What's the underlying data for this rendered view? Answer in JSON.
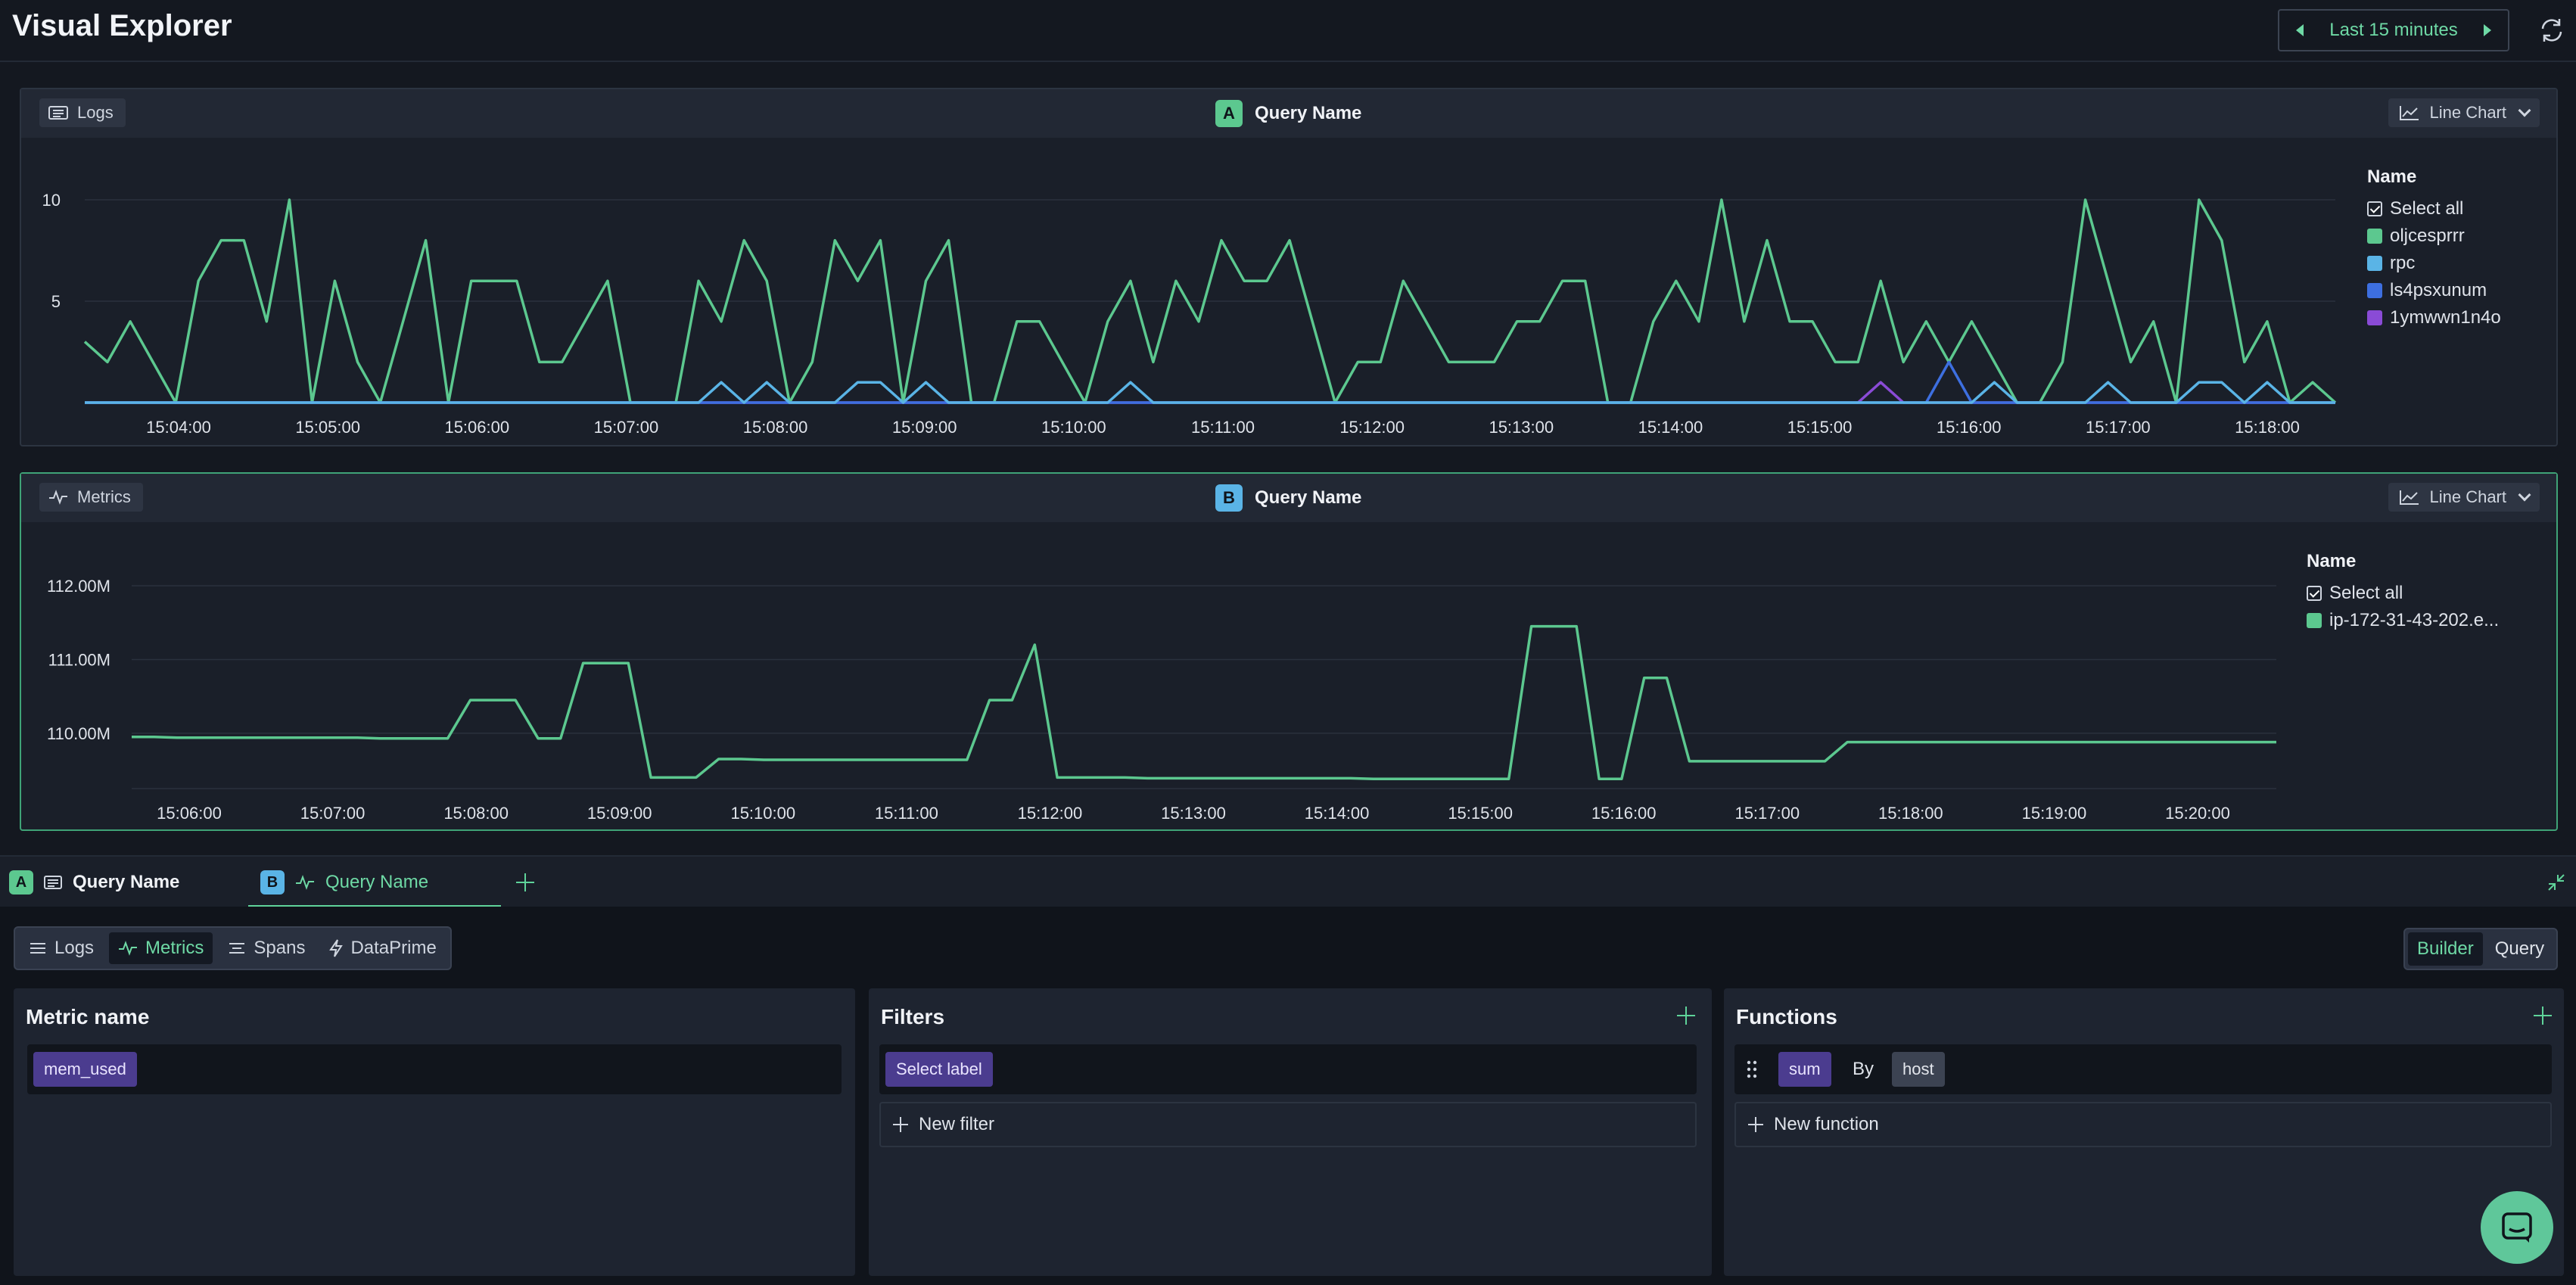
{
  "header": {
    "title": "Visual Explorer",
    "time_range": "Last 15 minutes"
  },
  "panel_a": {
    "source": "Logs",
    "badge": "A",
    "query_name": "Query Name",
    "chart_type": "Line Chart",
    "legend": {
      "title": "Name",
      "select_all": "Select all",
      "items": [
        {
          "label": "oljcesprrr",
          "color": "#5cc88f"
        },
        {
          "label": "rpc",
          "color": "#5ab4e6"
        },
        {
          "label": "ls4psxunum",
          "color": "#3d6fe0"
        },
        {
          "label": "1ymwwn1n4o",
          "color": "#8a4bd6"
        }
      ]
    }
  },
  "panel_b": {
    "source": "Metrics",
    "badge": "B",
    "query_name": "Query Name",
    "chart_type": "Line Chart",
    "legend": {
      "title": "Name",
      "select_all": "Select all",
      "items": [
        {
          "label": "ip-172-31-43-202.e...",
          "color": "#5cc88f"
        }
      ]
    }
  },
  "chart_data": [
    {
      "type": "line",
      "x_ticks": [
        "15:04:00",
        "15:05:00",
        "15:06:00",
        "15:07:00",
        "15:08:00",
        "15:09:00",
        "15:10:00",
        "15:11:00",
        "15:12:00",
        "15:13:00",
        "15:14:00",
        "15:15:00",
        "15:16:00",
        "15:17:00",
        "15:18:00"
      ],
      "y_ticks": [
        "5",
        "10"
      ],
      "ylim": [
        0,
        10
      ],
      "grid": true,
      "legend_position": "right",
      "series": [
        {
          "name": "oljcesprrr",
          "color": "#5cc88f",
          "values": [
            3,
            2,
            4,
            2,
            0,
            6,
            8,
            8,
            4,
            10,
            0,
            6,
            2,
            0,
            4,
            8,
            0,
            6,
            6,
            6,
            2,
            2,
            4,
            6,
            0,
            0,
            0,
            6,
            4,
            8,
            6,
            0,
            2,
            8,
            6,
            8,
            0,
            6,
            8,
            0,
            0,
            4,
            4,
            2,
            0,
            4,
            6,
            2,
            6,
            4,
            8,
            6,
            6,
            8,
            4,
            0,
            2,
            2,
            6,
            4,
            2,
            2,
            2,
            4,
            4,
            6,
            6,
            0,
            0,
            4,
            6,
            4,
            10,
            4,
            8,
            4,
            4,
            2,
            2,
            6,
            2,
            4,
            2,
            4,
            2,
            0,
            0,
            2,
            10,
            6,
            2,
            4,
            0,
            10,
            8,
            2,
            4,
            0,
            1,
            0
          ]
        },
        {
          "name": "rpc",
          "color": "#5ab4e6",
          "values": [
            0,
            0,
            0,
            0,
            0,
            0,
            0,
            0,
            0,
            0,
            0,
            0,
            0,
            0,
            0,
            0,
            0,
            0,
            0,
            0,
            0,
            0,
            0,
            0,
            0,
            0,
            0,
            0,
            1,
            0,
            1,
            0,
            0,
            0,
            1,
            1,
            0,
            1,
            0,
            0,
            0,
            0,
            0,
            0,
            0,
            0,
            1,
            0,
            0,
            0,
            0,
            0,
            0,
            0,
            0,
            0,
            0,
            0,
            0,
            0,
            0,
            0,
            0,
            0,
            0,
            0,
            0,
            0,
            0,
            0,
            0,
            0,
            0,
            0,
            0,
            0,
            0,
            0,
            0,
            0,
            0,
            0,
            0,
            0,
            1,
            0,
            0,
            0,
            0,
            1,
            0,
            0,
            0,
            1,
            1,
            0,
            1,
            0,
            0,
            0
          ]
        },
        {
          "name": "ls4psxunum",
          "color": "#3d6fe0",
          "values": [
            0,
            0,
            0,
            0,
            0,
            0,
            0,
            0,
            0,
            0,
            0,
            0,
            0,
            0,
            0,
            0,
            0,
            0,
            0,
            0,
            0,
            0,
            0,
            0,
            0,
            0,
            0,
            0,
            0,
            0,
            0,
            0,
            0,
            0,
            0,
            0,
            0,
            0,
            0,
            0,
            0,
            0,
            0,
            0,
            0,
            0,
            0,
            0,
            0,
            0,
            0,
            0,
            0,
            0,
            0,
            0,
            0,
            0,
            0,
            0,
            0,
            0,
            0,
            0,
            0,
            0,
            0,
            0,
            0,
            0,
            0,
            0,
            0,
            0,
            0,
            0,
            0,
            0,
            0,
            0,
            0,
            0,
            2,
            0,
            0,
            0,
            0,
            0,
            0,
            0,
            0,
            0,
            0,
            0,
            0,
            0,
            0,
            0,
            0,
            0
          ]
        },
        {
          "name": "1ymwwn1n4o",
          "color": "#8a4bd6",
          "values": [
            0,
            0,
            0,
            0,
            0,
            0,
            0,
            0,
            0,
            0,
            0,
            0,
            0,
            0,
            0,
            0,
            0,
            0,
            0,
            0,
            0,
            0,
            0,
            0,
            0,
            0,
            0,
            0,
            0,
            0,
            0,
            0,
            0,
            0,
            0,
            0,
            0,
            0,
            0,
            0,
            0,
            0,
            0,
            0,
            0,
            0,
            0,
            0,
            0,
            0,
            0,
            0,
            0,
            0,
            0,
            0,
            0,
            0,
            0,
            0,
            0,
            0,
            0,
            0,
            0,
            0,
            0,
            0,
            0,
            0,
            0,
            0,
            0,
            0,
            0,
            0,
            0,
            0,
            0,
            1,
            0,
            0,
            0,
            0,
            0,
            0,
            0,
            0,
            0,
            0,
            0,
            0,
            0,
            0,
            0,
            0,
            0,
            0,
            0,
            0
          ]
        }
      ]
    },
    {
      "type": "line",
      "x_ticks": [
        "15:06:00",
        "15:07:00",
        "15:08:00",
        "15:09:00",
        "15:10:00",
        "15:11:00",
        "15:12:00",
        "15:13:00",
        "15:14:00",
        "15:15:00",
        "15:16:00",
        "15:17:00",
        "15:18:00",
        "15:19:00",
        "15:20:00"
      ],
      "y_ticks": [
        "110.00M",
        "111.00M",
        "112.00M"
      ],
      "ylim": [
        109.25,
        112.0
      ],
      "grid": true,
      "legend_position": "right",
      "series": [
        {
          "name": "ip-172-31-43-202.e...",
          "color": "#5cc88f",
          "values": [
            109.95,
            109.95,
            109.94,
            109.94,
            109.94,
            109.94,
            109.94,
            109.94,
            109.94,
            109.94,
            109.94,
            109.93,
            109.93,
            109.93,
            109.93,
            110.45,
            110.45,
            110.45,
            109.93,
            109.93,
            110.95,
            110.95,
            110.95,
            109.4,
            109.4,
            109.4,
            109.65,
            109.65,
            109.64,
            109.64,
            109.64,
            109.64,
            109.64,
            109.64,
            109.64,
            109.64,
            109.64,
            109.64,
            110.45,
            110.45,
            111.2,
            109.4,
            109.4,
            109.4,
            109.4,
            109.39,
            109.39,
            109.39,
            109.39,
            109.39,
            109.39,
            109.39,
            109.39,
            109.39,
            109.39,
            109.38,
            109.38,
            109.38,
            109.38,
            109.38,
            109.38,
            109.38,
            111.45,
            111.45,
            111.45,
            109.38,
            109.38,
            110.75,
            110.75,
            109.62,
            109.62,
            109.62,
            109.62,
            109.62,
            109.62,
            109.62,
            109.88,
            109.88,
            109.88,
            109.88,
            109.88,
            109.88,
            109.88,
            109.88,
            109.88,
            109.88,
            109.88,
            109.88,
            109.88,
            109.88,
            109.88,
            109.88,
            109.88,
            109.88,
            109.88,
            109.88
          ]
        }
      ]
    }
  ],
  "query_tabs": [
    {
      "badge": "A",
      "source": "Logs",
      "label": "Query Name"
    },
    {
      "badge": "B",
      "source": "Metrics",
      "label": "Query Name"
    }
  ],
  "source_tabs": [
    "Logs",
    "Metrics",
    "Spans",
    "DataPrime"
  ],
  "mode_tabs": [
    "Builder",
    "Query"
  ],
  "metric_card": {
    "title": "Metric name",
    "value": "mem_used"
  },
  "filters_card": {
    "title": "Filters",
    "placeholder_pill": "Select label",
    "new_label": "New filter"
  },
  "functions_card": {
    "title": "Functions",
    "fn": "sum",
    "by": "By",
    "group": "host",
    "new_label": "New function"
  }
}
